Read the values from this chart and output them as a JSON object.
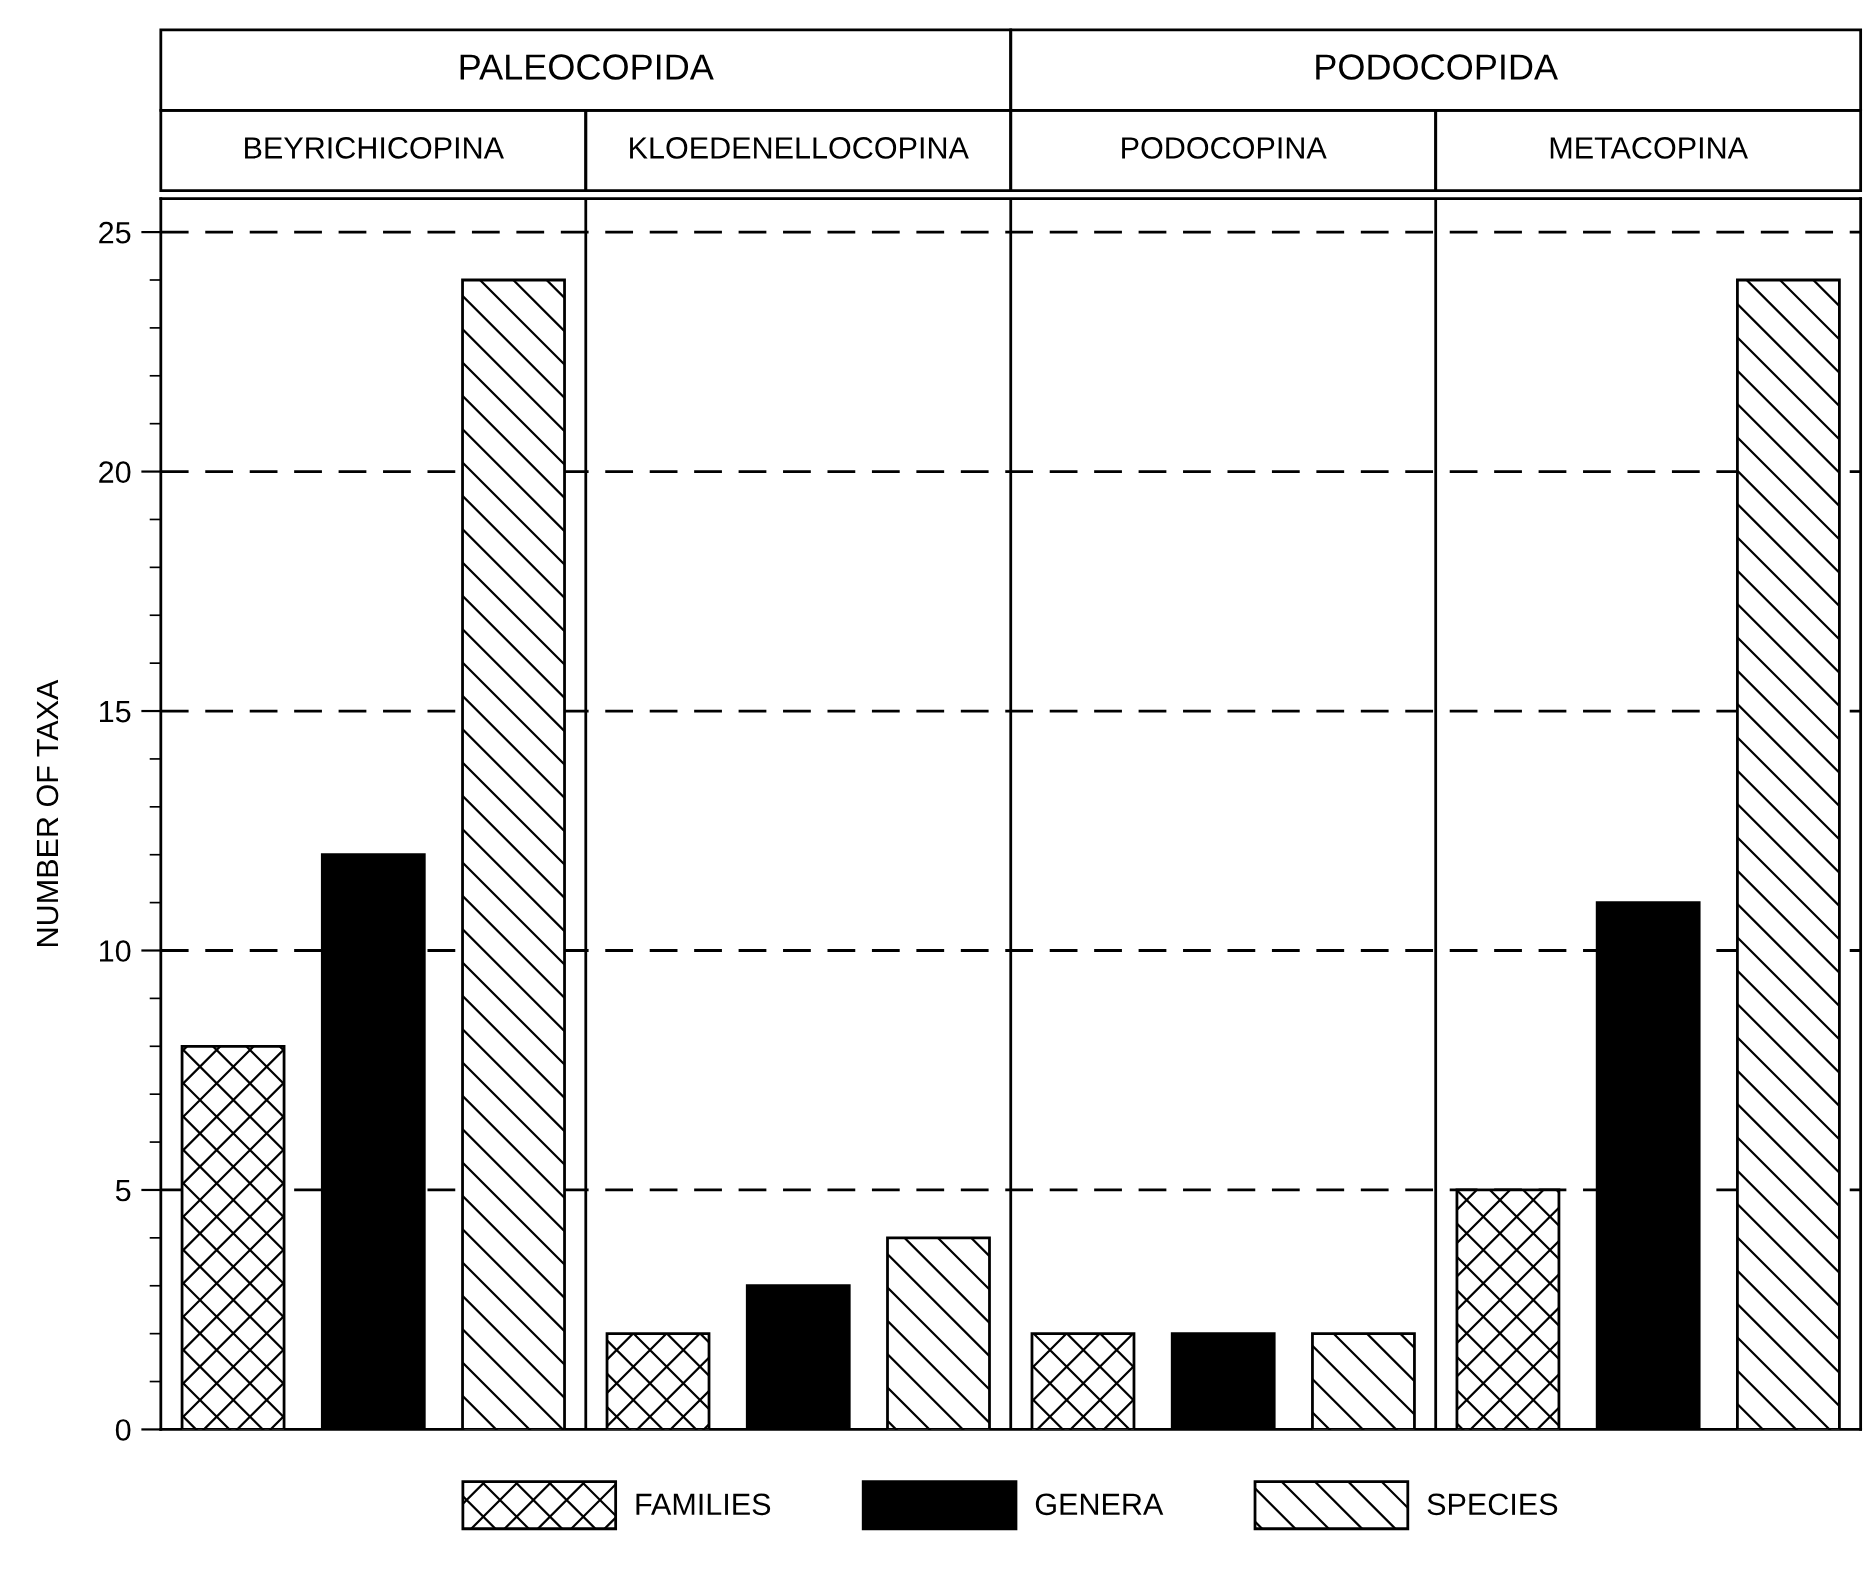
{
  "chart_data": {
    "type": "bar",
    "categories": [
      "BEYRICHICOPINA",
      "KLOEDENELLOCOPINA",
      "PODOCOPINA",
      "METACOPINA"
    ],
    "series": [
      {
        "name": "FAMILIES",
        "color": "#000000",
        "values": [
          8,
          2,
          2,
          5
        ]
      },
      {
        "name": "GENERA",
        "color": "#000000",
        "values": [
          12,
          3,
          2,
          11
        ]
      },
      {
        "name": "SPECIES",
        "color": "#000000",
        "values": [
          24,
          4,
          2,
          24
        ]
      }
    ],
    "ylabel": "NUMBER OF TAXA",
    "annotations": [
      "PALEOCOPIDA",
      "PODOCOPIDA"
    ],
    "ylim": [
      0,
      25.7
    ],
    "yticks": [
      0,
      5,
      10,
      15,
      20,
      25
    ],
    "grid": "y",
    "legend": "bottom"
  }
}
